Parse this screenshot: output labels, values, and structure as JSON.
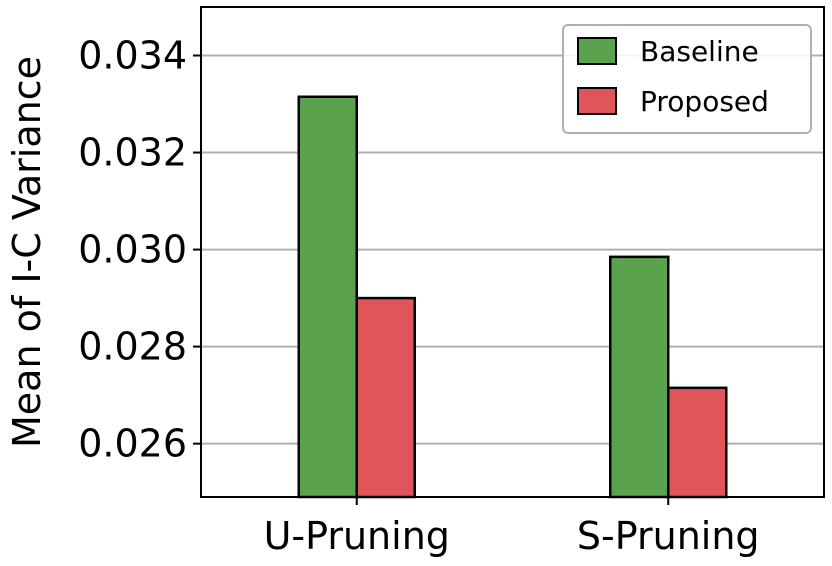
{
  "chart_data": {
    "type": "bar",
    "categories": [
      "U-Pruning",
      "S-Pruning"
    ],
    "series": [
      {
        "name": "Baseline",
        "color": "#5ba24f",
        "values": [
          0.03315,
          0.02985
        ]
      },
      {
        "name": "Proposed",
        "color": "#e0555a",
        "values": [
          0.029,
          0.02715
        ]
      }
    ],
    "ylabel": "Mean of I-C Variance",
    "xlabel": "",
    "ylim": [
      0.0249,
      0.035
    ],
    "yticks": [
      0.026,
      0.028,
      0.03,
      0.032,
      0.034
    ],
    "ytick_labels": [
      "0.026",
      "0.028",
      "0.030",
      "0.032",
      "0.034"
    ],
    "grid": "horizontal",
    "legend_position": "top-right"
  }
}
